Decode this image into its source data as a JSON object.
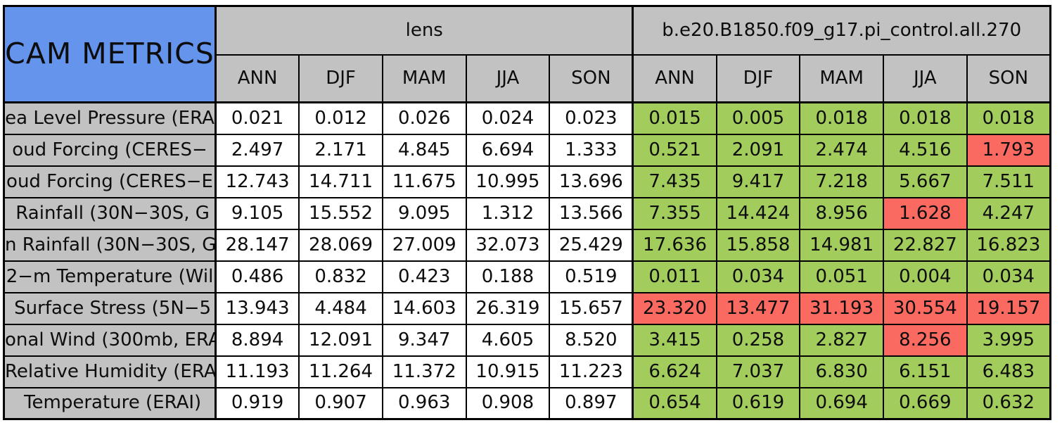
{
  "colors": {
    "header_blue": "#6494EC",
    "header_gray": "#C2C2C2",
    "green": "#A2CD5D",
    "red": "#FA6A61",
    "grid": "#000000",
    "lens_cell_white": "#FFFFFF"
  },
  "chart_data": {
    "type": "table",
    "title": "CAM METRICS",
    "column_groups": [
      "lens",
      "b.e20.B1850.f09_g17.pi_control.all.270"
    ],
    "seasons": [
      "ANN",
      "DJF",
      "MAM",
      "JJA",
      "SON"
    ],
    "rows": [
      {
        "label": "ea Level Pressure (ERA",
        "lens": [
          "0.021",
          "0.012",
          "0.026",
          "0.024",
          "0.023"
        ],
        "control": [
          "0.015",
          "0.005",
          "0.018",
          "0.018",
          "0.018"
        ],
        "control_colors": [
          "green",
          "green",
          "green",
          "green",
          "green"
        ]
      },
      {
        "label": "oud Forcing (CERES−",
        "lens": [
          "2.497",
          "2.171",
          "4.845",
          "6.694",
          "1.333"
        ],
        "control": [
          "0.521",
          "2.091",
          "2.474",
          "4.516",
          "1.793"
        ],
        "control_colors": [
          "green",
          "green",
          "green",
          "green",
          "red"
        ]
      },
      {
        "label": "oud Forcing (CERES−E",
        "lens": [
          "12.743",
          "14.711",
          "11.675",
          "10.995",
          "13.696"
        ],
        "control": [
          "7.435",
          "9.417",
          "7.218",
          "5.667",
          "7.511"
        ],
        "control_colors": [
          "green",
          "green",
          "green",
          "green",
          "green"
        ]
      },
      {
        "label": " Rainfall (30N−30S, G",
        "lens": [
          "9.105",
          "15.552",
          "9.095",
          "1.312",
          "13.566"
        ],
        "control": [
          "7.355",
          "14.424",
          "8.956",
          "1.628",
          "4.247"
        ],
        "control_colors": [
          "green",
          "green",
          "green",
          "red",
          "green"
        ]
      },
      {
        "label": "n Rainfall (30N−30S, G",
        "lens": [
          "28.147",
          "28.069",
          "27.009",
          "32.073",
          "25.429"
        ],
        "control": [
          "17.636",
          "15.858",
          "14.981",
          "22.827",
          "16.823"
        ],
        "control_colors": [
          "green",
          "green",
          "green",
          "green",
          "green"
        ]
      },
      {
        "label": "2−m Temperature (Wil",
        "lens": [
          "0.486",
          "0.832",
          "0.423",
          "0.188",
          "0.519"
        ],
        "control": [
          "0.011",
          "0.034",
          "0.051",
          "0.004",
          "0.034"
        ],
        "control_colors": [
          "green",
          "green",
          "green",
          "green",
          "green"
        ]
      },
      {
        "label": " Surface Stress (5N−5",
        "lens": [
          "13.943",
          "4.484",
          "14.603",
          "26.319",
          "15.657"
        ],
        "control": [
          "23.320",
          "13.477",
          "31.193",
          "30.554",
          "19.157"
        ],
        "control_colors": [
          "red",
          "red",
          "red",
          "red",
          "red"
        ]
      },
      {
        "label": "onal Wind (300mb, ERA",
        "lens": [
          "8.894",
          "12.091",
          "9.347",
          "4.605",
          "8.520"
        ],
        "control": [
          "3.415",
          "0.258",
          "2.827",
          "8.256",
          "3.995"
        ],
        "control_colors": [
          "green",
          "green",
          "green",
          "red",
          "green"
        ]
      },
      {
        "label": "Relative Humidity (ERAI",
        "lens": [
          "11.193",
          "11.264",
          "11.372",
          "10.915",
          "11.223"
        ],
        "control": [
          "6.624",
          "7.037",
          "6.830",
          "6.151",
          "6.483"
        ],
        "control_colors": [
          "green",
          "green",
          "green",
          "green",
          "green"
        ]
      },
      {
        "label": " Temperature (ERAI)",
        "lens": [
          "0.919",
          "0.907",
          "0.963",
          "0.908",
          "0.897"
        ],
        "control": [
          "0.654",
          "0.619",
          "0.694",
          "0.669",
          "0.632"
        ],
        "control_colors": [
          "green",
          "green",
          "green",
          "green",
          "green"
        ]
      }
    ]
  }
}
